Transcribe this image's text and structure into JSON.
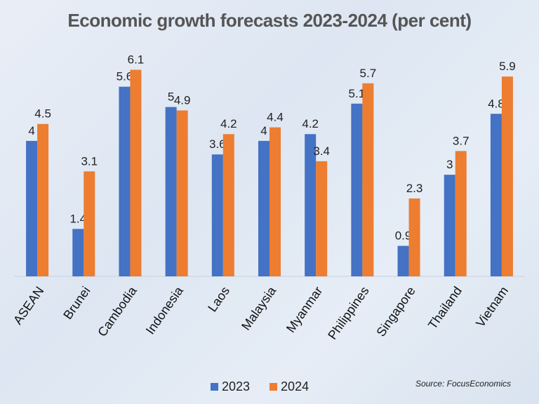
{
  "title": "Economic growth forecasts 2023-2024 (per cent)",
  "source": "Source: FocusEconomics",
  "colors": {
    "series_2023": "#4472C4",
    "series_2024": "#ED7D31"
  },
  "chart_data": {
    "type": "bar",
    "title": "Economic growth forecasts 2023-2024 (per cent)",
    "categories": [
      "ASEAN",
      "Brunei",
      "Cambodia",
      "Indonesia",
      "Laos",
      "Malaysia",
      "Myanmar",
      "Philippines",
      "Singapore",
      "Thailand",
      "Vietnam"
    ],
    "series": [
      {
        "name": "2023",
        "values": [
          4,
          1.4,
          5.6,
          5,
          3.6,
          4,
          4.2,
          5.1,
          0.9,
          3,
          4.8
        ],
        "labels": [
          "4",
          "1.4",
          "5.6",
          "5",
          "3.6",
          "4",
          "4.2",
          "5.1",
          "0.9",
          "3",
          "4.8"
        ]
      },
      {
        "name": "2024",
        "values": [
          4.5,
          3.1,
          6.1,
          4.9,
          4.2,
          4.4,
          3.4,
          5.7,
          2.3,
          3.7,
          5.9
        ],
        "labels": [
          "4.5",
          "3.1",
          "6.1",
          "4.9",
          "4.2",
          "4.4",
          "3.4",
          "5.7",
          "2.3",
          "3.7",
          "5.9"
        ]
      }
    ],
    "ylim": [
      0,
      6.4
    ],
    "grid": false,
    "legend_position": "bottom"
  }
}
